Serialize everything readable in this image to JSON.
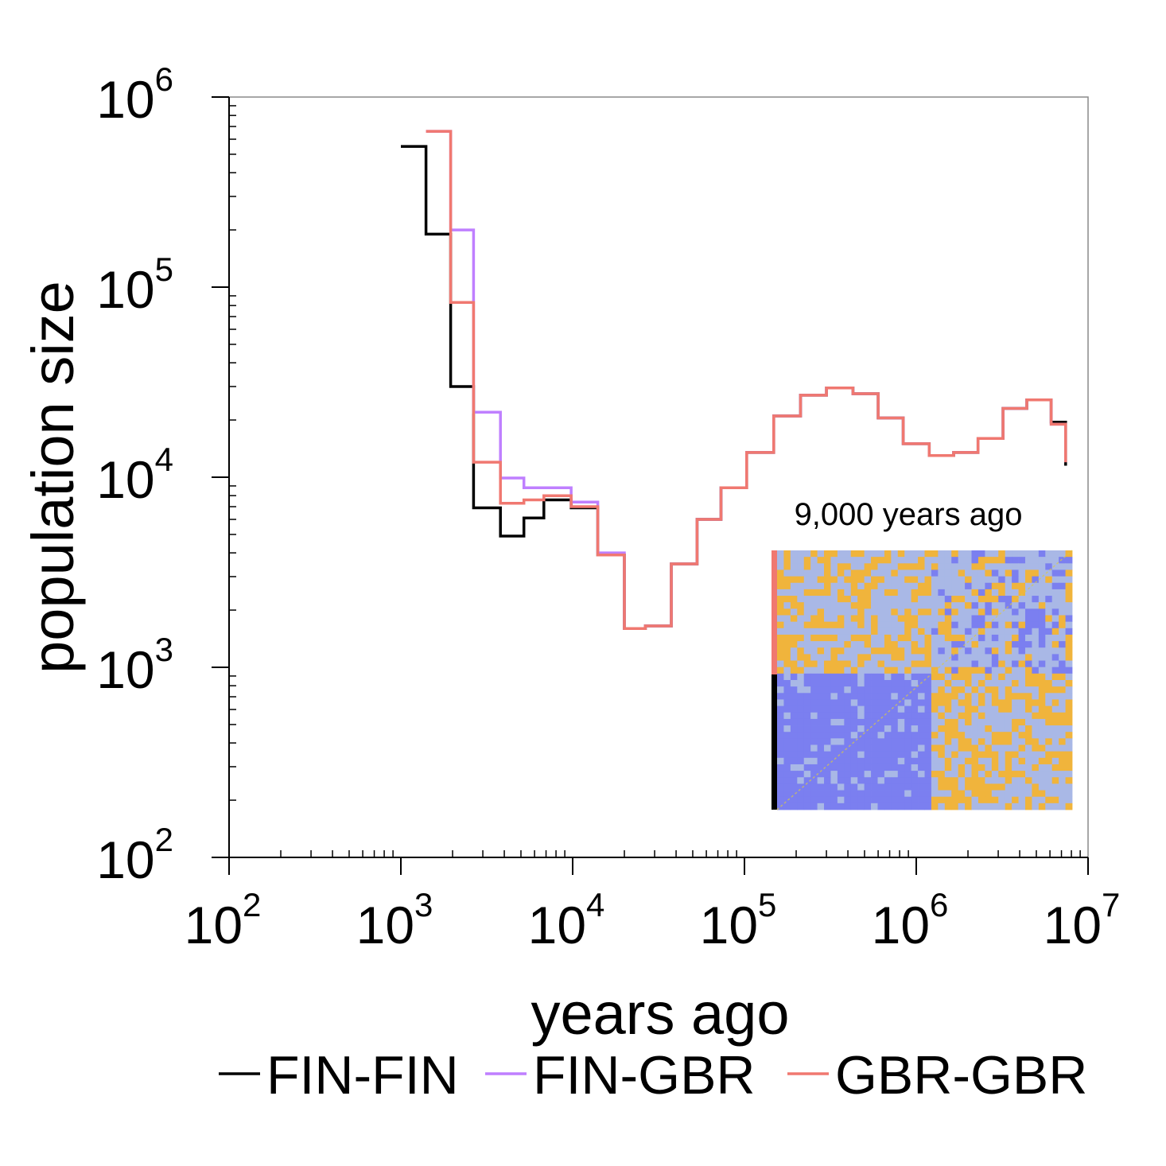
{
  "chart_data": {
    "type": "line",
    "step": true,
    "xlabel": "years ago",
    "ylabel": "population size",
    "x_scale": "log",
    "y_scale": "log",
    "xlim": [
      100,
      10000000
    ],
    "ylim": [
      100,
      1000000
    ],
    "x_ticks": [
      {
        "value": 100,
        "base": "10",
        "exp": "2"
      },
      {
        "value": 1000,
        "base": "10",
        "exp": "3"
      },
      {
        "value": 10000,
        "base": "10",
        "exp": "4"
      },
      {
        "value": 100000,
        "base": "10",
        "exp": "5"
      },
      {
        "value": 1000000,
        "base": "10",
        "exp": "6"
      },
      {
        "value": 10000000,
        "base": "10",
        "exp": "7"
      }
    ],
    "y_ticks": [
      {
        "value": 100,
        "base": "10",
        "exp": "2"
      },
      {
        "value": 1000,
        "base": "10",
        "exp": "3"
      },
      {
        "value": 10000,
        "base": "10",
        "exp": "4"
      },
      {
        "value": 100000,
        "base": "10",
        "exp": "5"
      },
      {
        "value": 1000000,
        "base": "10",
        "exp": "6"
      }
    ],
    "grid": false,
    "legend_position": "bottom",
    "series": [
      {
        "name": "FIN-FIN",
        "color": "#000000",
        "points": [
          [
            1000,
            550000
          ],
          [
            1400,
            190000
          ],
          [
            1950,
            30000
          ],
          [
            2650,
            6900
          ],
          [
            3800,
            4900
          ],
          [
            5200,
            6100
          ],
          [
            6800,
            7600
          ],
          [
            9800,
            6900
          ],
          [
            14000,
            3900
          ],
          [
            20000,
            1600
          ],
          [
            26500,
            1650
          ],
          [
            37500,
            3500
          ],
          [
            53000,
            6000
          ],
          [
            73000,
            8800
          ],
          [
            103000,
            13500
          ],
          [
            148000,
            21000
          ],
          [
            212000,
            27000
          ],
          [
            300000,
            29500
          ],
          [
            428000,
            27500
          ],
          [
            600000,
            20500
          ],
          [
            840000,
            15000
          ],
          [
            1190000,
            13000
          ],
          [
            1650000,
            13500
          ],
          [
            2290000,
            16000
          ],
          [
            3200000,
            23000
          ],
          [
            4400000,
            25500
          ],
          [
            6100000,
            19500
          ],
          [
            7400000,
            11500
          ]
        ]
      },
      {
        "name": "FIN-GBR",
        "color": "#bf7fff",
        "points": [
          [
            1400,
            660000
          ],
          [
            1950,
            200000
          ],
          [
            2650,
            22000
          ],
          [
            3800,
            9900
          ],
          [
            5200,
            8800
          ],
          [
            6800,
            8800
          ],
          [
            9800,
            7400
          ],
          [
            14000,
            4000
          ],
          [
            20000,
            1600
          ],
          [
            26500,
            1650
          ],
          [
            37500,
            3500
          ],
          [
            53000,
            6000
          ],
          [
            73000,
            8800
          ],
          [
            103000,
            13500
          ],
          [
            148000,
            21000
          ],
          [
            212000,
            27000
          ],
          [
            300000,
            29500
          ],
          [
            428000,
            27500
          ],
          [
            600000,
            20500
          ],
          [
            840000,
            15000
          ],
          [
            1190000,
            13000
          ],
          [
            1650000,
            13500
          ],
          [
            2290000,
            16000
          ],
          [
            3200000,
            23000
          ],
          [
            4400000,
            25500
          ],
          [
            6100000,
            19000
          ],
          [
            7400000,
            12000
          ]
        ]
      },
      {
        "name": "GBR-GBR",
        "color": "#f07870",
        "points": [
          [
            1400,
            660000
          ],
          [
            1950,
            83000
          ],
          [
            2650,
            12000
          ],
          [
            3800,
            7300
          ],
          [
            5200,
            7600
          ],
          [
            6800,
            8000
          ],
          [
            9800,
            7000
          ],
          [
            14000,
            3900
          ],
          [
            20000,
            1600
          ],
          [
            26500,
            1650
          ],
          [
            37500,
            3500
          ],
          [
            53000,
            6000
          ],
          [
            73000,
            8800
          ],
          [
            103000,
            13500
          ],
          [
            148000,
            21000
          ],
          [
            212000,
            27000
          ],
          [
            300000,
            29500
          ],
          [
            428000,
            27500
          ],
          [
            600000,
            20500
          ],
          [
            840000,
            15000
          ],
          [
            1190000,
            13000
          ],
          [
            1650000,
            13500
          ],
          [
            2290000,
            16000
          ],
          [
            3200000,
            23000
          ],
          [
            4400000,
            25500
          ],
          [
            6100000,
            19000
          ],
          [
            7400000,
            12000
          ]
        ]
      }
    ],
    "inset": {
      "caption": "9,000 years ago",
      "type": "heatmap",
      "group_colors": [
        "#f07870",
        "#000000"
      ],
      "palette": [
        "#7b7ff0",
        "#a9b8e6",
        "#f0b43c"
      ],
      "block_fractions": [
        0.48,
        0.52
      ]
    }
  }
}
